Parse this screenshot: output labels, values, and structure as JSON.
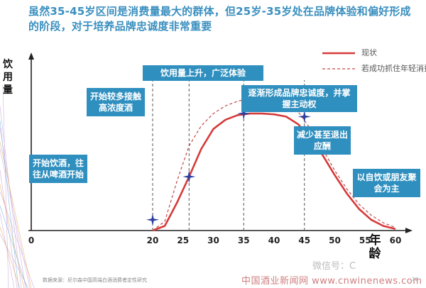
{
  "title": "虽然35-45岁区间是消费量最大的群体，但25岁-35岁处在品牌体验和偏好形成的阶段，对于培养品牌忠诚度非常重要",
  "colors": {
    "title": "#3a8fbf",
    "callout": "#2f8fbf",
    "current": "#d63a3a",
    "target": "#c24a4a",
    "marker": "#2c3e9e"
  },
  "chart_data": {
    "type": "line",
    "xlabel": "年龄",
    "ylabel": "饮用量",
    "xlim": [
      0,
      60
    ],
    "ylim": [
      0,
      100
    ],
    "xticks": [
      "0",
      "20",
      "25",
      "30",
      "35",
      "40",
      "45",
      "50",
      "55",
      "60"
    ],
    "grid": false,
    "legend_position": "top-right",
    "series": [
      {
        "name": "现状",
        "style": "solid",
        "x": [
          20,
          22,
          24,
          26,
          28,
          30,
          32,
          34,
          36,
          38,
          40,
          42,
          44,
          46,
          48,
          50,
          52,
          54,
          56,
          58,
          60
        ],
        "values": [
          0,
          3,
          18,
          35,
          53,
          66,
          72,
          75,
          76,
          76,
          75.5,
          74,
          69,
          60,
          49,
          36,
          24,
          14,
          7,
          3,
          1
        ]
      },
      {
        "name": "若成功抓住年轻消费者后",
        "style": "dashed",
        "x": [
          20,
          22,
          24,
          26,
          28,
          30,
          32,
          34,
          36,
          38,
          40,
          42,
          44,
          46,
          48,
          50,
          52,
          54,
          56,
          58,
          60
        ],
        "values": [
          0,
          6,
          32,
          55,
          68,
          76,
          81,
          84,
          86,
          87,
          86,
          83,
          77,
          66,
          53,
          39,
          27,
          17,
          10,
          5,
          2
        ]
      }
    ],
    "markers": [
      {
        "x": 20,
        "y": 7
      },
      {
        "x": 26,
        "y": 35
      },
      {
        "x": 35,
        "y": 76
      },
      {
        "x": 45,
        "y": 74
      }
    ],
    "annotations": [
      {
        "text": "开始饮酒，往往从啤酒开始"
      },
      {
        "text": "开始较多接触高浓度酒"
      },
      {
        "text": "饮用量上升，广泛体验"
      },
      {
        "text": "逐渐形成品牌忠诚度，并掌握主动权"
      },
      {
        "text": "减少甚至退出应酬"
      },
      {
        "text": "以自饮或朋友聚会为主"
      }
    ]
  },
  "footer": {
    "source": "数据来源：尼尔森中国高端白酒消费者定性研究",
    "page": "30",
    "watermark_wechat": "微信号：C",
    "watermark_site": "中国酒业新闻网 www.cnwinenews.com"
  }
}
